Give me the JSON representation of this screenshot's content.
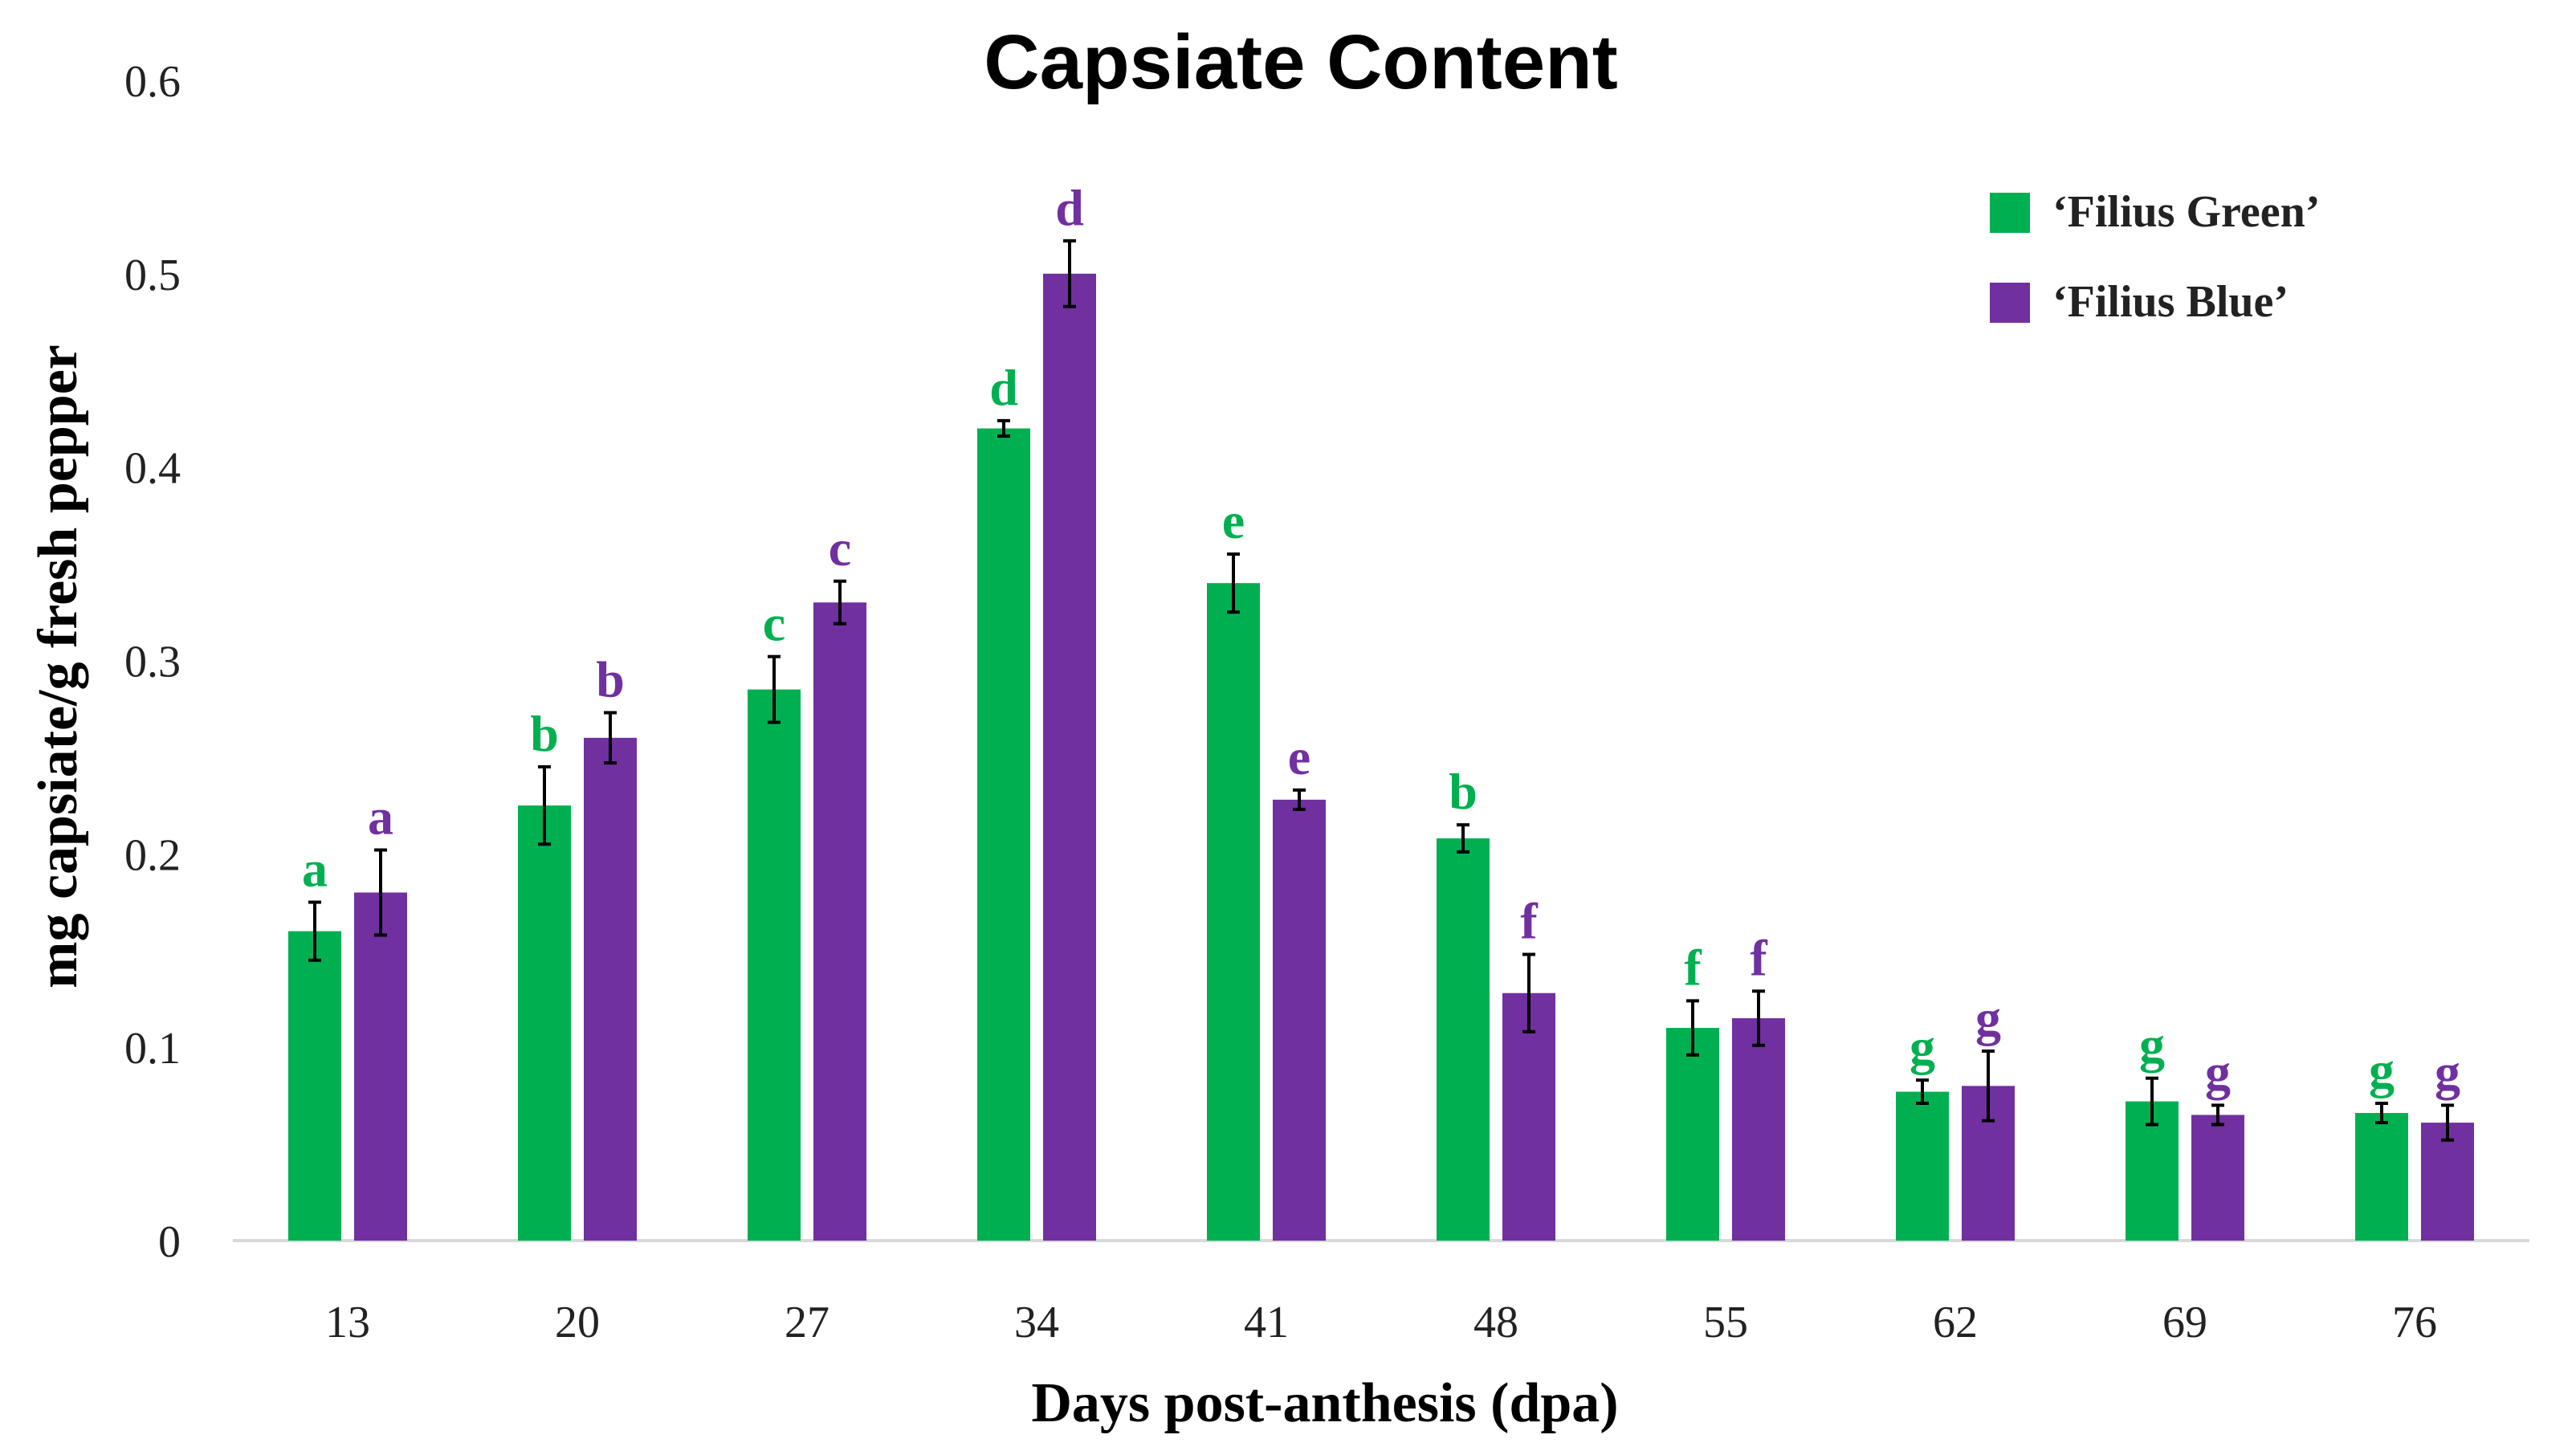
{
  "chart_data": {
    "type": "bar",
    "title": "Capsiate Content",
    "xlabel": "Days post-anthesis (dpa)",
    "ylabel": "mg capsiate/g fresh pepper",
    "ylim": [
      0,
      0.6
    ],
    "yticks": [
      0,
      0.1,
      0.2,
      0.3,
      0.4,
      0.5,
      0.6
    ],
    "ytick_labels": [
      "0",
      "0.1",
      "0.2",
      "0.3",
      "0.4",
      "0.5",
      "0.6"
    ],
    "categories": [
      "13",
      "20",
      "27",
      "34",
      "41",
      "48",
      "55",
      "62",
      "69",
      "76"
    ],
    "grid": false,
    "legend_position": "top-right",
    "series": [
      {
        "name": "‘Filius Green’",
        "color": "#00b050",
        "values": [
          0.16,
          0.225,
          0.285,
          0.42,
          0.34,
          0.208,
          0.11,
          0.077,
          0.072,
          0.066
        ],
        "errors": [
          0.015,
          0.02,
          0.017,
          0.004,
          0.015,
          0.007,
          0.014,
          0.006,
          0.012,
          0.005
        ],
        "labels": [
          "a",
          "b",
          "c",
          "d",
          "e",
          "b",
          "f",
          "g",
          "g",
          "g"
        ]
      },
      {
        "name": "‘Filius Blue’",
        "color": "#7030a0",
        "values": [
          0.18,
          0.26,
          0.33,
          0.5,
          0.228,
          0.128,
          0.115,
          0.08,
          0.065,
          0.061
        ],
        "errors": [
          0.022,
          0.013,
          0.011,
          0.017,
          0.005,
          0.02,
          0.014,
          0.018,
          0.005,
          0.009
        ],
        "labels": [
          "a",
          "b",
          "c",
          "d",
          "e",
          "f",
          "f",
          "g",
          "g",
          "g"
        ]
      }
    ]
  }
}
